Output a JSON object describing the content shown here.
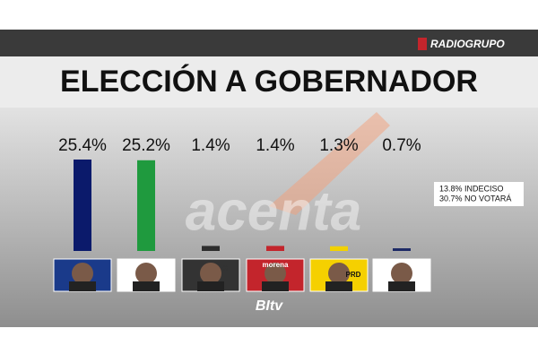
{
  "chart_data": {
    "type": "bar",
    "title": "ELECCIÓN A GOBERNADOR",
    "categories": [
      null,
      null,
      null,
      null,
      null,
      null
    ],
    "values": [
      25.4,
      25.2,
      1.4,
      1.4,
      1.3,
      0.7
    ],
    "value_labels": [
      "25.4%",
      "25.2%",
      "1.4%",
      "1.4%",
      "1.3%",
      "0.7%"
    ],
    "colors": [
      "#0b1a6b",
      "#1f9a3e",
      "#2e2e2e",
      "#c3252c",
      "#f2d100",
      "#1d2a66"
    ],
    "annotations": [
      "13.8% INDECISO",
      "30.7% NO VOTARÁ"
    ]
  },
  "logos": {
    "network": "RADIOGRUPO",
    "watermark": "acenta",
    "channel": "BItv",
    "party_labels": [
      "G",
      "morena",
      "PRD"
    ]
  }
}
